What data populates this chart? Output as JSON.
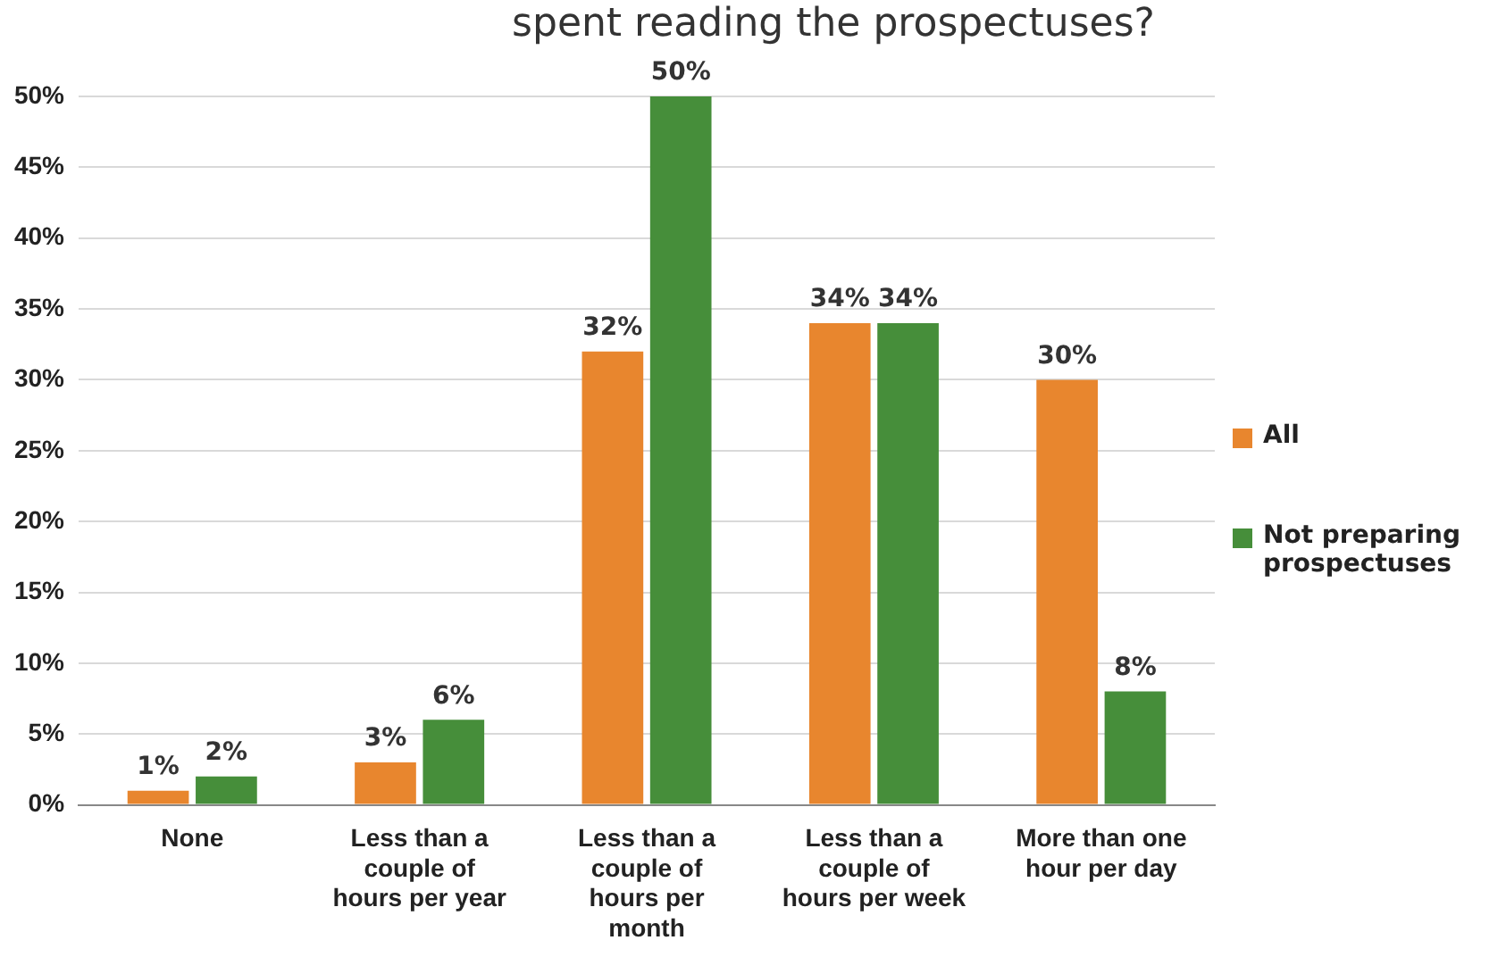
{
  "chart_data": {
    "type": "bar",
    "title": "spent reading the prospectuses?",
    "categories": [
      "None",
      "Less than a couple of hours per year",
      "Less than a couple of hours per month",
      "Less than a couple of hours per week",
      "More than one hour per day"
    ],
    "series": [
      {
        "name": "All",
        "color": "#e8862e",
        "values": [
          1,
          3,
          32,
          34,
          30
        ],
        "value_labels": [
          "1%",
          "3%",
          "32%",
          "34%",
          "30%"
        ]
      },
      {
        "name": "Not preparing prospectuses",
        "color": "#468e3a",
        "values": [
          2,
          6,
          50,
          34,
          8
        ],
        "value_labels": [
          "2%",
          "6%",
          "50%",
          "34%",
          "8%"
        ]
      }
    ],
    "ylim": [
      0,
      50
    ],
    "yticks": [
      {
        "value": 0,
        "label": "0%"
      },
      {
        "value": 5,
        "label": "5%"
      },
      {
        "value": 10,
        "label": "10%"
      },
      {
        "value": 15,
        "label": "15%"
      },
      {
        "value": 20,
        "label": "20%"
      },
      {
        "value": 25,
        "label": "25%"
      },
      {
        "value": 30,
        "label": "30%"
      },
      {
        "value": 35,
        "label": "35%"
      },
      {
        "value": 40,
        "label": "40%"
      },
      {
        "value": 45,
        "label": "45%"
      },
      {
        "value": 50,
        "label": "50%"
      }
    ],
    "grid": "y",
    "legend": "right"
  }
}
